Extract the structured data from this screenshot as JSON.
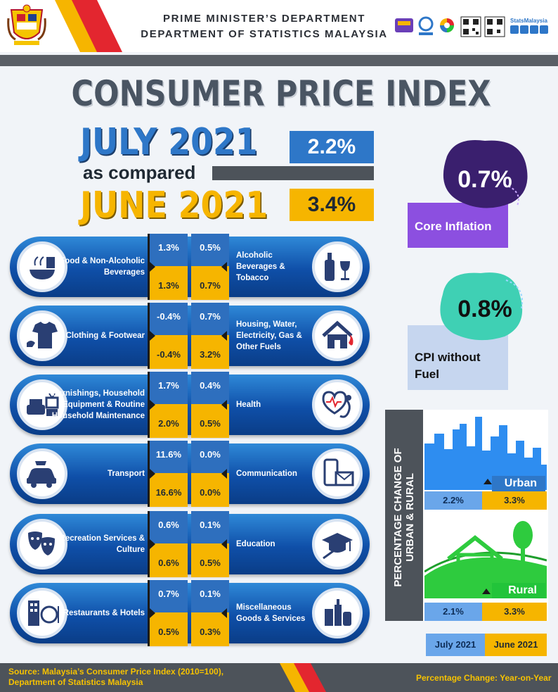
{
  "header": {
    "department_line_1": "PRIME MINISTER’S DEPARTMENT",
    "department_line_2": "DEPARTMENT OF STATISTICS MALAYSIA",
    "social_label": "StatsMalaysia"
  },
  "title": "CONSUMER PRICE INDEX",
  "comparison": {
    "current_period": "JULY 2021",
    "compared_label": "as compared",
    "previous_period": "JUNE 2021",
    "current_value": "2.2%",
    "previous_value": "3.4%"
  },
  "groups": [
    {
      "left_label": "Food & Non-Alcoholic Beverages",
      "left_cur": "1.3%",
      "left_prev": "1.3%",
      "right_label": "Alcoholic Beverages & Tobacco",
      "right_cur": "0.5%",
      "right_prev": "0.7%",
      "left_icon": "food-icon",
      "right_icon": "bottle-glass-icon"
    },
    {
      "left_label": "Clothing & Footwear",
      "left_cur": "-0.4%",
      "left_prev": "-0.4%",
      "right_label": "Housing, Water, Electricity, Gas & Other Fuels",
      "right_cur": "0.7%",
      "right_prev": "3.2%",
      "left_icon": "clothing-icon",
      "right_icon": "house-icon"
    },
    {
      "left_label": "Furnishings, Household Equipment & Routine Household Maintenance",
      "left_cur": "1.7%",
      "left_prev": "2.0%",
      "right_label": "Health",
      "right_cur": "0.4%",
      "right_prev": "0.5%",
      "left_icon": "furniture-icon",
      "right_icon": "stethoscope-icon"
    },
    {
      "left_label": "Transport",
      "left_cur": "11.6%",
      "left_prev": "16.6%",
      "right_label": "Communication",
      "right_cur": "0.0%",
      "right_prev": "0.0%",
      "left_icon": "car-icon",
      "right_icon": "phone-mail-icon"
    },
    {
      "left_label": "Recreation Services & Culture",
      "left_cur": "0.6%",
      "left_prev": "0.6%",
      "right_label": "Education",
      "right_cur": "0.1%",
      "right_prev": "0.5%",
      "left_icon": "theatre-masks-icon",
      "right_icon": "graduation-cap-icon"
    },
    {
      "left_label": "Restaurants & Hotels",
      "left_cur": "0.7%",
      "left_prev": "0.5%",
      "right_label": "Miscellaneous Goods & Services",
      "right_cur": "0.1%",
      "right_prev": "0.3%",
      "left_icon": "hotel-icon",
      "right_icon": "toiletries-icon"
    }
  ],
  "core_inflation": {
    "value": "0.7%",
    "label": "Core Inflation"
  },
  "cpi_without_fuel": {
    "value": "0.8%",
    "label": "CPI without Fuel"
  },
  "urban_rural": {
    "side_label": "PERCENTAGE CHANGE OF URBAN & RURAL",
    "urban": {
      "label": "Urban",
      "current": "2.2%",
      "previous": "3.3%"
    },
    "rural": {
      "label": "Rural",
      "current": "2.1%",
      "previous": "3.3%"
    }
  },
  "legend": {
    "current": "July 2021",
    "previous": "June 2021"
  },
  "footer": {
    "source_line_1": "Source: Malaysia’s Consumer Price Index (2010=100),",
    "source_line_2": "Department of Statistics Malaysia",
    "note": "Percentage Change: Year-on-Year"
  },
  "colors": {
    "current": "#2e77c8",
    "previous": "#f6b500",
    "core_inflation": "#8c4fe0",
    "cpi_without_fuel": "#c6d6ef",
    "rural": "#22c43a"
  }
}
